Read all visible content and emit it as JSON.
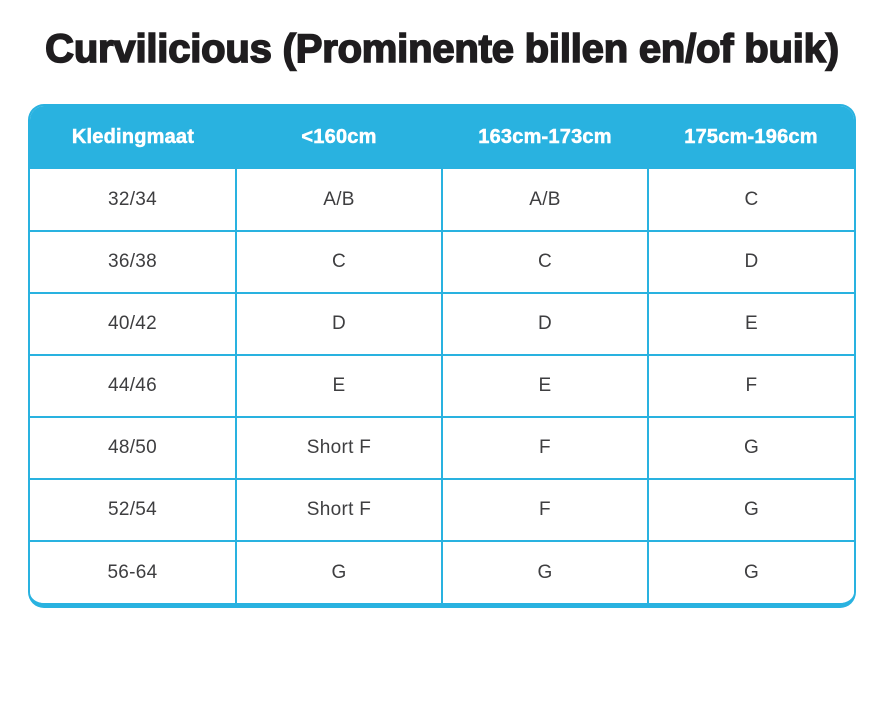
{
  "page": {
    "title": "Curvilicious (Prominente billen en/of buik)"
  },
  "table": {
    "headers": [
      "Kledingmaat",
      "<160cm",
      "163cm-173cm",
      "175cm-196cm"
    ],
    "rows": [
      {
        "cells": [
          "32/34",
          "A/B",
          "A/B",
          "C"
        ]
      },
      {
        "cells": [
          "36/38",
          "C",
          "C",
          "D"
        ]
      },
      {
        "cells": [
          "40/42",
          "D",
          "D",
          "E"
        ]
      },
      {
        "cells": [
          "44/46",
          "E",
          "E",
          "F"
        ]
      },
      {
        "cells": [
          "48/50",
          "Short F",
          "F",
          "G"
        ]
      },
      {
        "cells": [
          "52/54",
          "Short F",
          "F",
          "G"
        ]
      },
      {
        "cells": [
          "56-64",
          "G",
          "G",
          "G"
        ]
      }
    ]
  },
  "colors": {
    "accent": "#29b2e0",
    "header_text": "#ffffff",
    "body_text": "#3e3e40",
    "title_text": "#1f1d1f"
  }
}
